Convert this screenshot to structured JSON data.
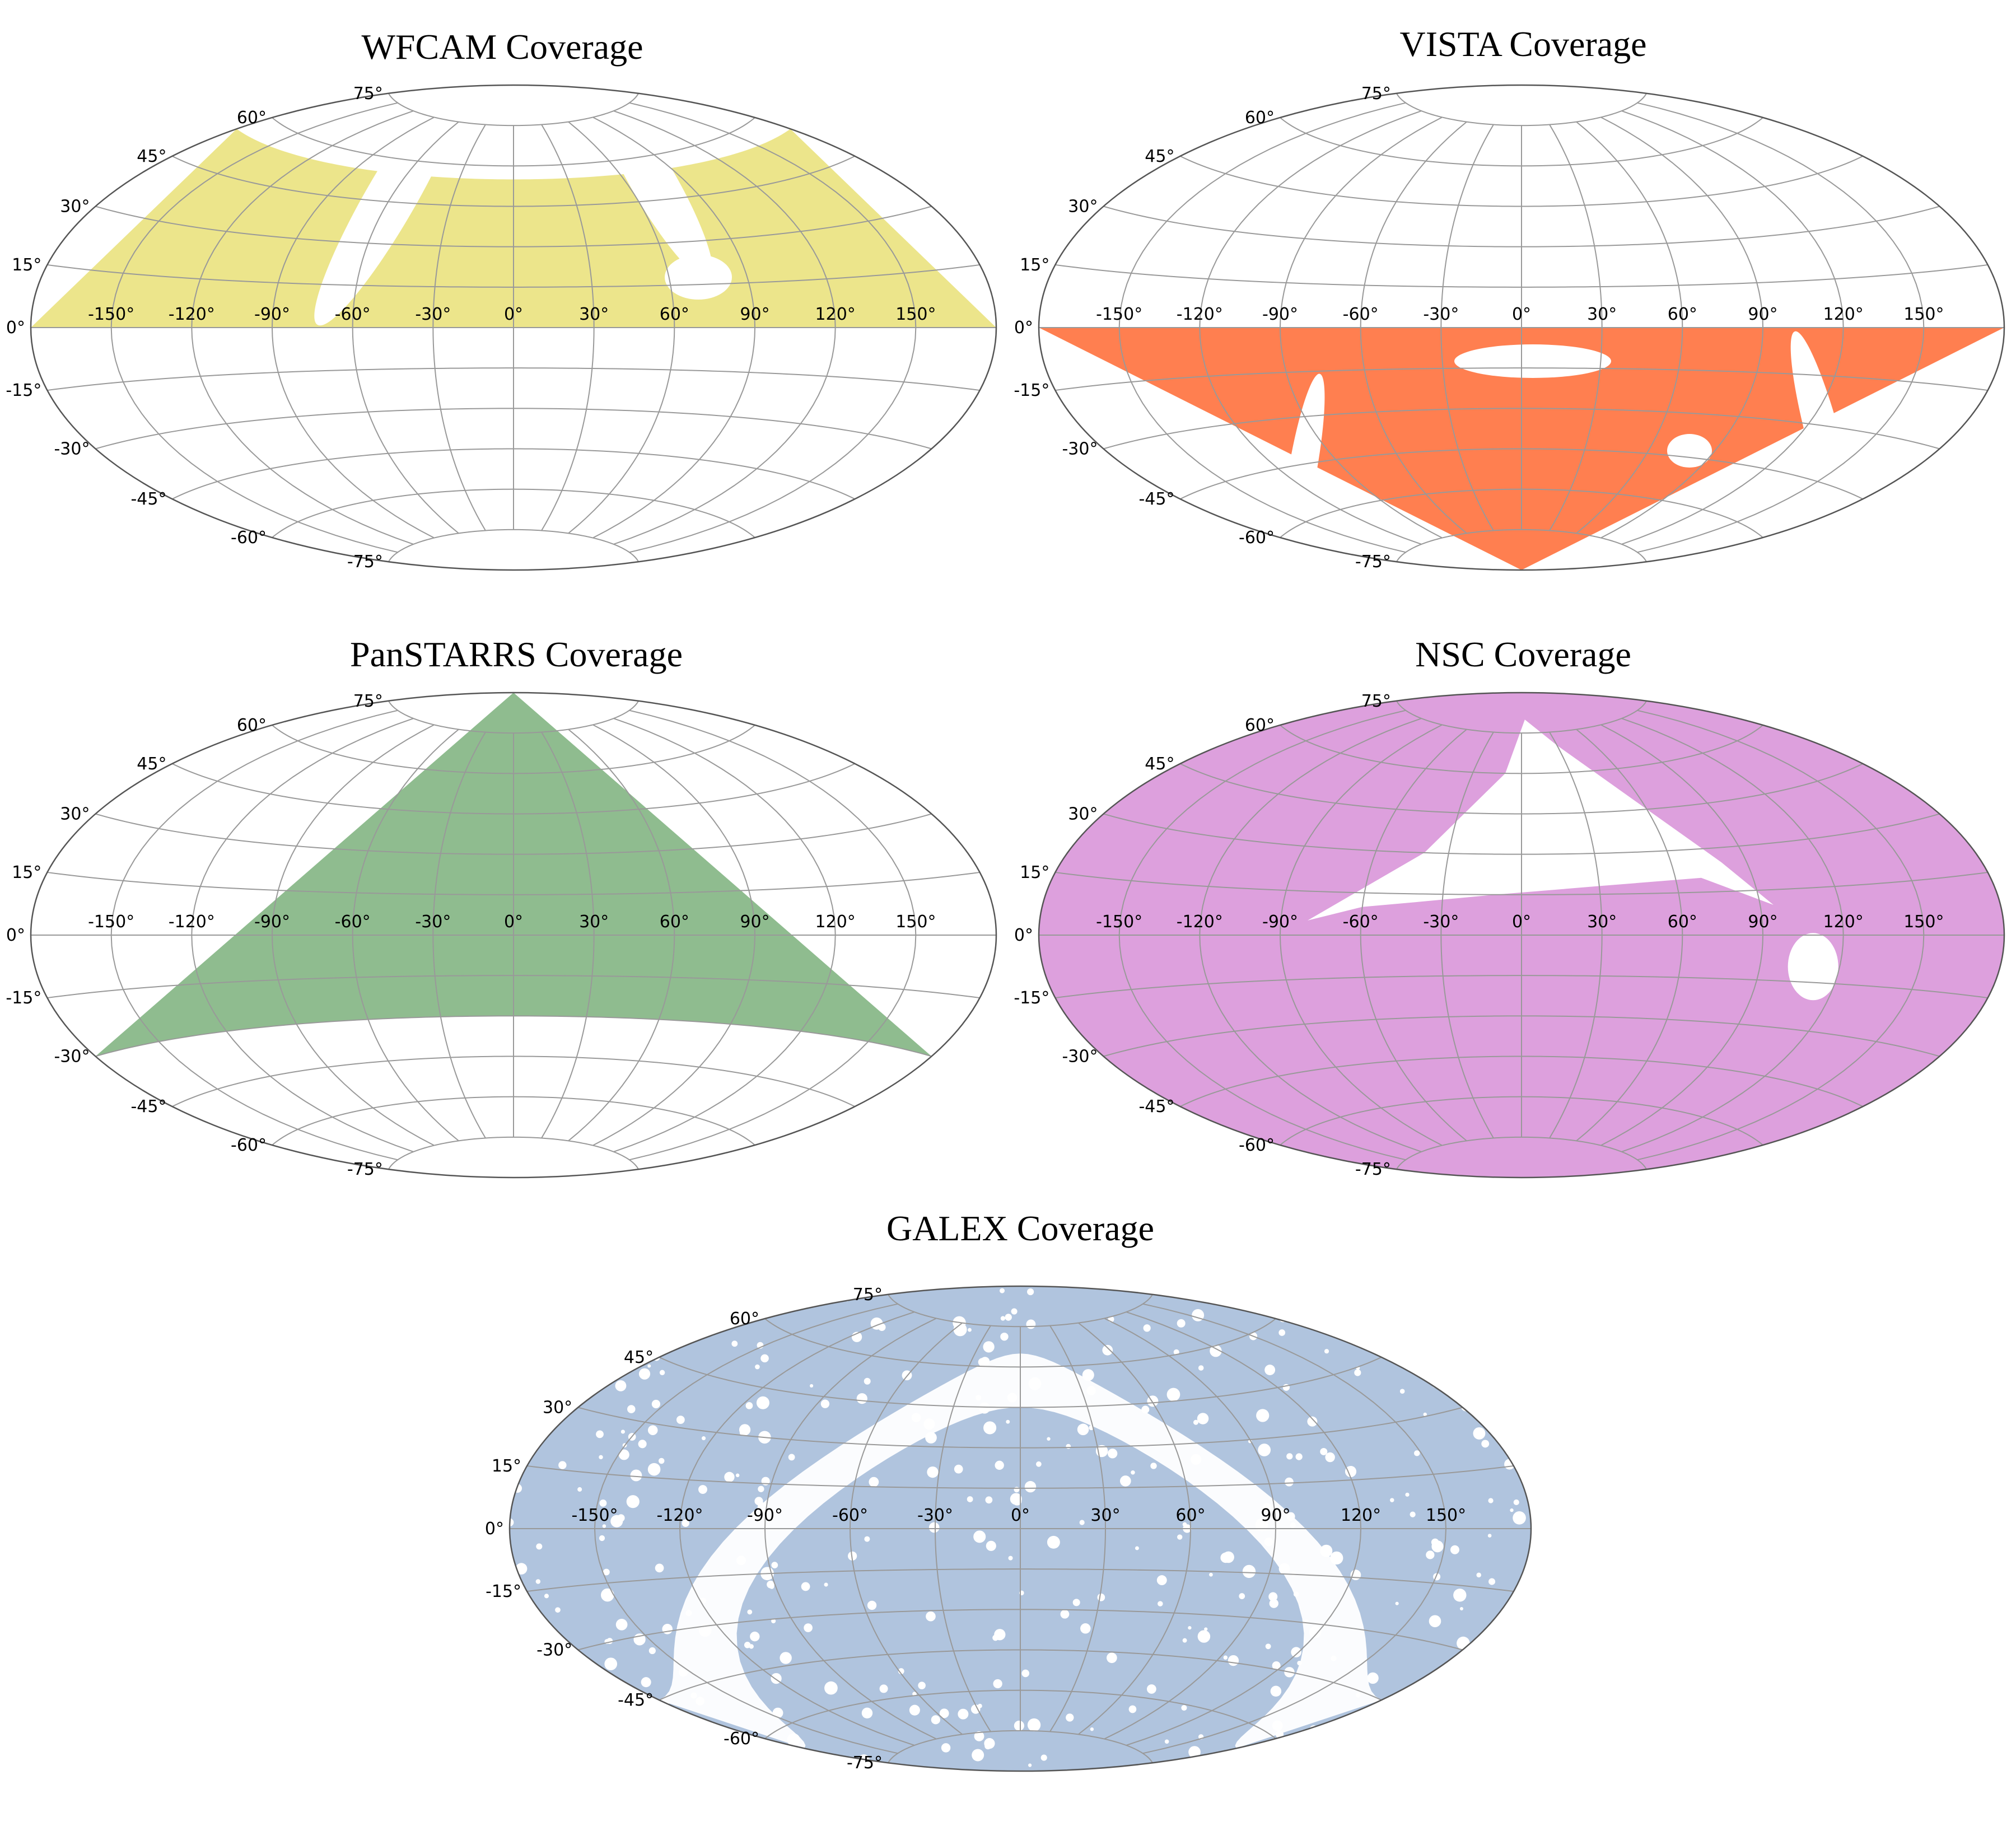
{
  "maps": [
    {
      "id": "wfcam",
      "title": "WFCAM Coverage",
      "fill_color": "#ece58b",
      "coverage": "dec 0° to ~+55° (northern band), with gaps near the Galactic plane"
    },
    {
      "id": "vista",
      "title": "VISTA Coverage",
      "fill_color": "#ff7f50",
      "coverage": "southern hemisphere, dec 0° to -90°, with a few gaps"
    },
    {
      "id": "panstarrs",
      "title": "PanSTARRS Coverage",
      "fill_color": "#8fbc8f",
      "coverage": "dec > -30°"
    },
    {
      "id": "nsc",
      "title": "NSC Coverage",
      "fill_color": "#dda0dd",
      "coverage": "nearly full sky except a northern region"
    },
    {
      "id": "galex",
      "title": "GALEX Coverage",
      "fill_color": "#b0c4de",
      "coverage": "patchy all-sky coverage avoiding the Galactic plane"
    }
  ],
  "longitude_ticks": [
    "-150°",
    "-120°",
    "-90°",
    "-60°",
    "-30°",
    "0°",
    "30°",
    "60°",
    "90°",
    "120°",
    "150°"
  ],
  "latitude_ticks": [
    "75°",
    "60°",
    "45°",
    "30°",
    "15°",
    "0°",
    "-15°",
    "-30°",
    "-45°",
    "-60°",
    "-75°"
  ],
  "projection": "Aitoff",
  "grid": true
}
